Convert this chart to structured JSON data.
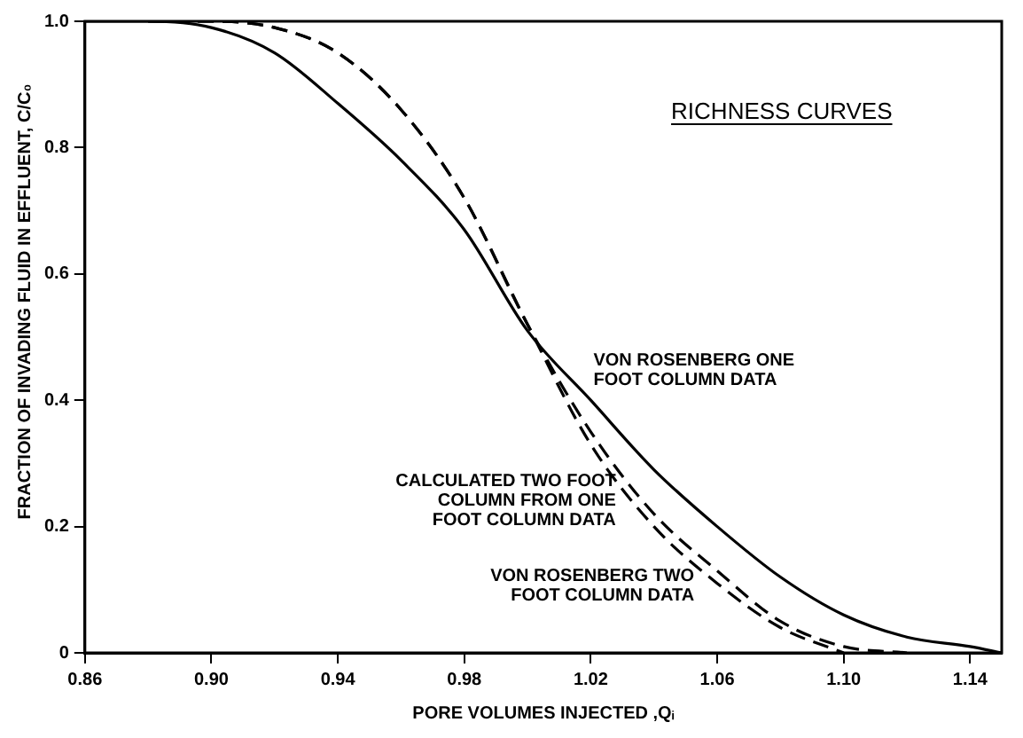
{
  "chart_data": {
    "type": "line",
    "title": "RICHNESS CURVES",
    "xlabel": "PORE VOLUMES INJECTED ,Qᵢ",
    "ylabel": "FRACTION OF INVADING FLUID IN EFFLUENT, C/C₀",
    "x": [
      0.86,
      0.88,
      0.9,
      0.92,
      0.94,
      0.96,
      0.98,
      1.0,
      1.02,
      1.04,
      1.06,
      1.08,
      1.1,
      1.12,
      1.14,
      1.15
    ],
    "series": [
      {
        "name": "VON ROSENBERG ONE FOOT COLUMN DATA",
        "color": "#000000",
        "line_style": "solid",
        "values": [
          1.0,
          1.0,
          0.99,
          0.95,
          0.87,
          0.78,
          0.67,
          0.51,
          0.4,
          0.29,
          0.2,
          0.12,
          0.06,
          0.025,
          0.01,
          0
        ]
      },
      {
        "name": "CALCULATED TWO FOOT COLUMN FROM ONE FOOT COLUMN DATA",
        "color": "#000000",
        "line_style": "dashed",
        "values": [
          null,
          1.0,
          1.0,
          0.99,
          0.95,
          0.86,
          0.72,
          0.52,
          0.35,
          0.22,
          0.13,
          0.05,
          0.01,
          0,
          null,
          null
        ]
      },
      {
        "name": "VON ROSENBERG TWO FOOT COLUMN DATA",
        "color": "#000000",
        "line_style": "dashed",
        "values": [
          null,
          1.0,
          1.0,
          0.99,
          0.95,
          0.86,
          0.72,
          0.52,
          0.33,
          0.2,
          0.11,
          0.04,
          0,
          null,
          null,
          null
        ]
      }
    ],
    "xlim": [
      0.86,
      1.15
    ],
    "ylim": [
      0,
      1
    ],
    "xticks": [
      0.86,
      {
        "value": 0.9,
        "label": "0.90"
      },
      0.94,
      0.98,
      1.02,
      1.06,
      {
        "value": 1.1,
        "label": "1.10"
      },
      1.14
    ],
    "yticks": [
      0,
      0.2,
      0.4,
      0.6,
      0.8,
      {
        "value": 1,
        "label": "1.0"
      }
    ],
    "grid": false,
    "legend": false,
    "marker": "none"
  }
}
